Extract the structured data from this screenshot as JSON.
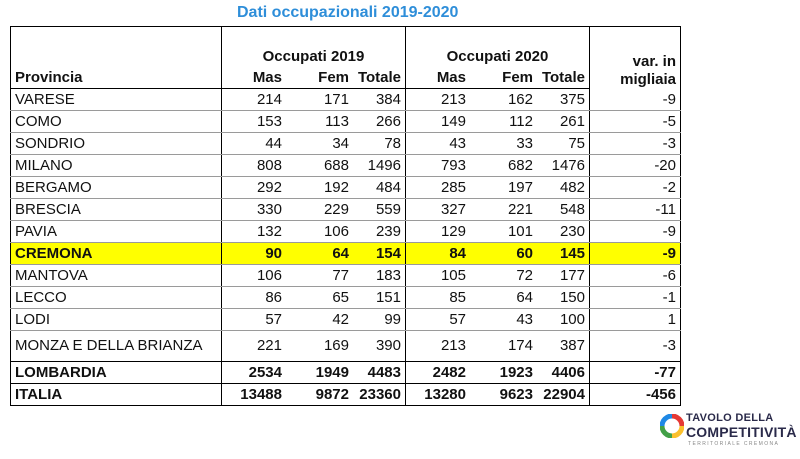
{
  "title": "Dati occupazionali 2019-2020",
  "header": {
    "group_2019": "Occupati 2019",
    "group_2020": "Occupati 2020",
    "var_line1": "var. in",
    "var_line2": "migliaia",
    "provincia": "Provincia",
    "cols": [
      "Mas",
      "Fem",
      "Totale",
      "Mas",
      "Fem",
      "Totale"
    ]
  },
  "rows": [
    {
      "name": "VARESE",
      "v": [
        "214",
        "171",
        "384",
        "213",
        "162",
        "375",
        "-9"
      ]
    },
    {
      "name": "COMO",
      "v": [
        "153",
        "113",
        "266",
        "149",
        "112",
        "261",
        "-5"
      ]
    },
    {
      "name": "SONDRIO",
      "v": [
        "44",
        "34",
        "78",
        "43",
        "33",
        "75",
        "-3"
      ]
    },
    {
      "name": "MILANO",
      "v": [
        "808",
        "688",
        "1496",
        "793",
        "682",
        "1476",
        "-20"
      ]
    },
    {
      "name": "BERGAMO",
      "v": [
        "292",
        "192",
        "484",
        "285",
        "197",
        "482",
        "-2"
      ]
    },
    {
      "name": "BRESCIA",
      "v": [
        "330",
        "229",
        "559",
        "327",
        "221",
        "548",
        "-11"
      ]
    },
    {
      "name": "PAVIA",
      "v": [
        "132",
        "106",
        "239",
        "129",
        "101",
        "230",
        "-9"
      ]
    },
    {
      "name": "CREMONA",
      "v": [
        "90",
        "64",
        "154",
        "84",
        "60",
        "145",
        "-9"
      ]
    },
    {
      "name": "MANTOVA",
      "v": [
        "106",
        "77",
        "183",
        "105",
        "72",
        "177",
        "-6"
      ]
    },
    {
      "name": "LECCO",
      "v": [
        "86",
        "65",
        "151",
        "85",
        "64",
        "150",
        "-1"
      ]
    },
    {
      "name": "LODI",
      "v": [
        "57",
        "42",
        "99",
        "57",
        "43",
        "100",
        "1"
      ]
    },
    {
      "name": "MONZA E DELLA BRIANZA",
      "v": [
        "221",
        "169",
        "390",
        "213",
        "174",
        "387",
        "-3"
      ]
    }
  ],
  "totals": [
    {
      "name": "LOMBARDIA",
      "v": [
        "2534",
        "1949",
        "4483",
        "2482",
        "1923",
        "4406",
        "-77"
      ]
    },
    {
      "name": "ITALIA",
      "v": [
        "13488",
        "9872",
        "23360",
        "13280",
        "9623",
        "22904",
        "-456"
      ]
    }
  ],
  "logo": {
    "line1": "TAVOLO DELLA",
    "line2": "COMPETITIVITÀ",
    "line3": "TERRITORIALE CREMONA",
    "colors": [
      "#e53935",
      "#fbc02d",
      "#43a047",
      "#1e88e5"
    ]
  }
}
